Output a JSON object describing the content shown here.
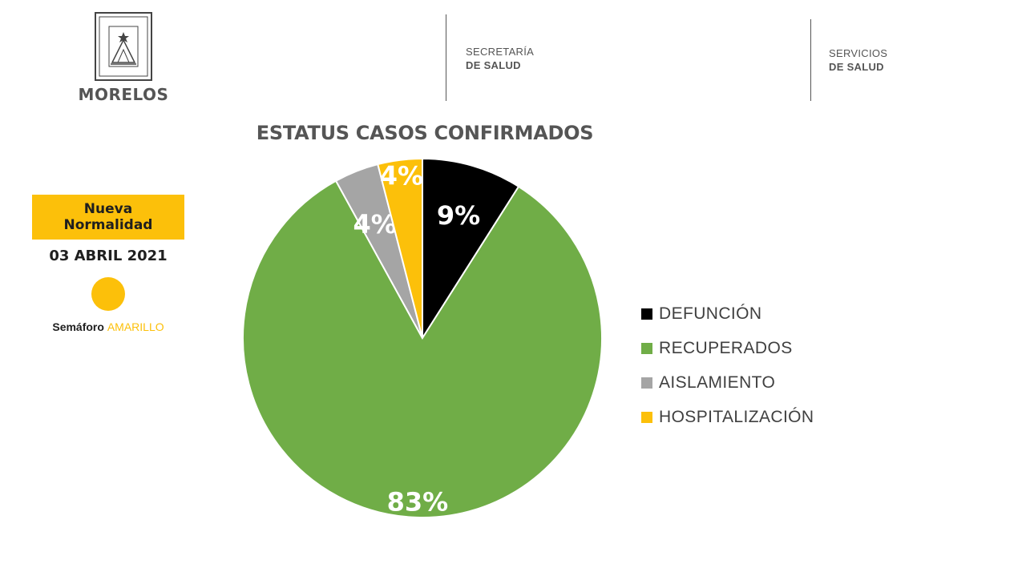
{
  "header": {
    "state": "MORELOS",
    "dept1": {
      "line1": "SECRETARÍA",
      "line2": "DE SALUD"
    },
    "dept2": {
      "line1": "SERVICIOS",
      "line2": "DE SALUD"
    }
  },
  "side": {
    "badge": "Nueva Normalidad",
    "date": "03 ABRIL 2021",
    "semaforo_label": "Semáforo",
    "semaforo_value": "AMARILLO",
    "light_color": "#fcc00a"
  },
  "chart_data": {
    "type": "pie",
    "title": "ESTATUS CASOS CONFIRMADOS",
    "categories": [
      "DEFUNCIÓN",
      "RECUPERADOS",
      "AISLAMIENTO",
      "HOSPITALIZACIÓN"
    ],
    "values": [
      9,
      83,
      4,
      4
    ],
    "labels": [
      "9%",
      "83%",
      "4%",
      "4%"
    ],
    "colors": [
      "#000000",
      "#70ad47",
      "#a5a5a5",
      "#fcc00a"
    ],
    "legend_position": "right"
  }
}
